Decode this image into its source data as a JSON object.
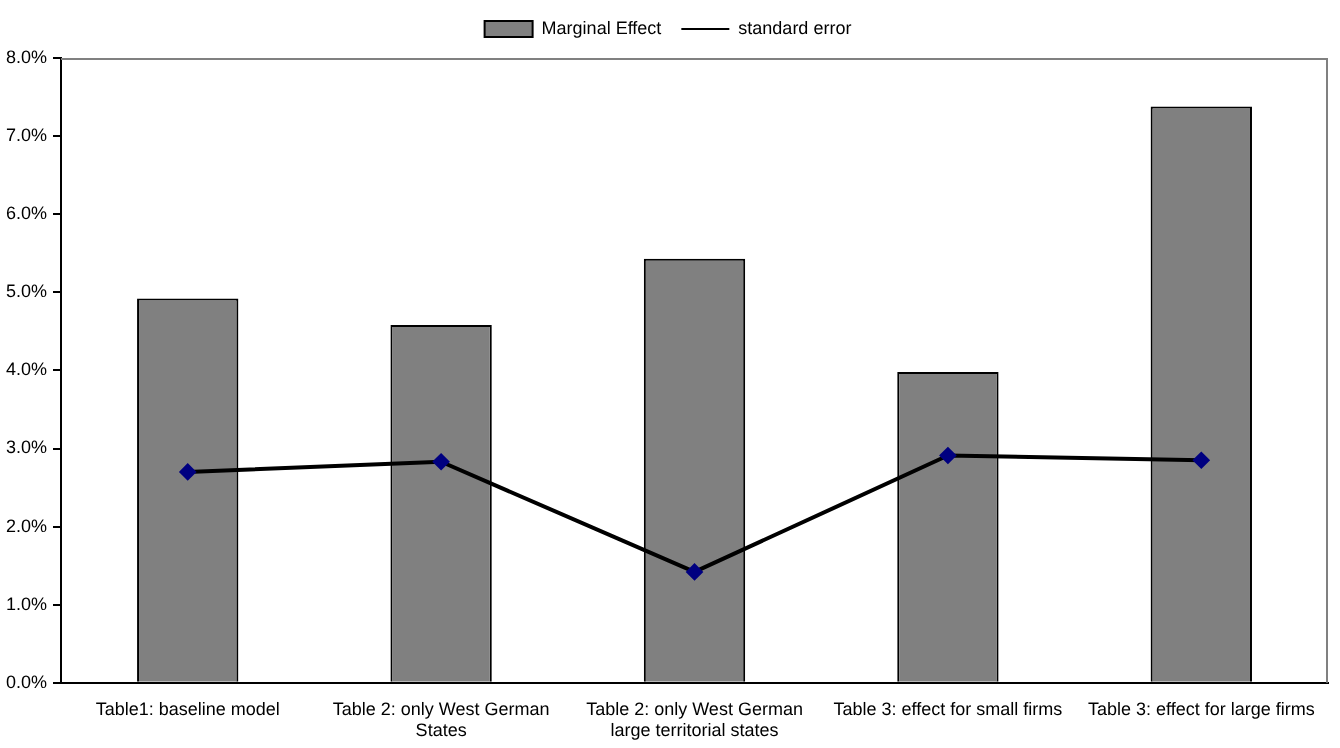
{
  "chart_data": {
    "type": "bar",
    "categories": [
      "Table1: baseline model",
      "Table 2: only West German\nStates",
      "Table 2: only West German\nlarge territorial states",
      "Table 3: effect for small firms",
      "Table 3: effect for large firms"
    ],
    "series": [
      {
        "name": "Marginal Effect",
        "color": "#808080",
        "values": [
          4.92,
          4.58,
          5.43,
          3.98,
          7.38
        ]
      },
      {
        "name": "standard error",
        "type": "line",
        "color": "#000000",
        "values": [
          2.7,
          2.83,
          1.42,
          2.91,
          2.85
        ]
      }
    ],
    "ylim": [
      0,
      8
    ],
    "yticks": [
      {
        "value": 0,
        "label": "0.0%"
      },
      {
        "value": 1,
        "label": "1.0%"
      },
      {
        "value": 2,
        "label": "2.0%"
      },
      {
        "value": 3,
        "label": "3.0%"
      },
      {
        "value": 4,
        "label": "4.0%"
      },
      {
        "value": 5,
        "label": "5.0%"
      },
      {
        "value": 6,
        "label": "6.0%"
      },
      {
        "value": 7,
        "label": "7.0%"
      },
      {
        "value": 8,
        "label": "8.0%"
      }
    ],
    "grid": false,
    "legend": "top",
    "marker": "diamond",
    "line_style": "solid"
  }
}
